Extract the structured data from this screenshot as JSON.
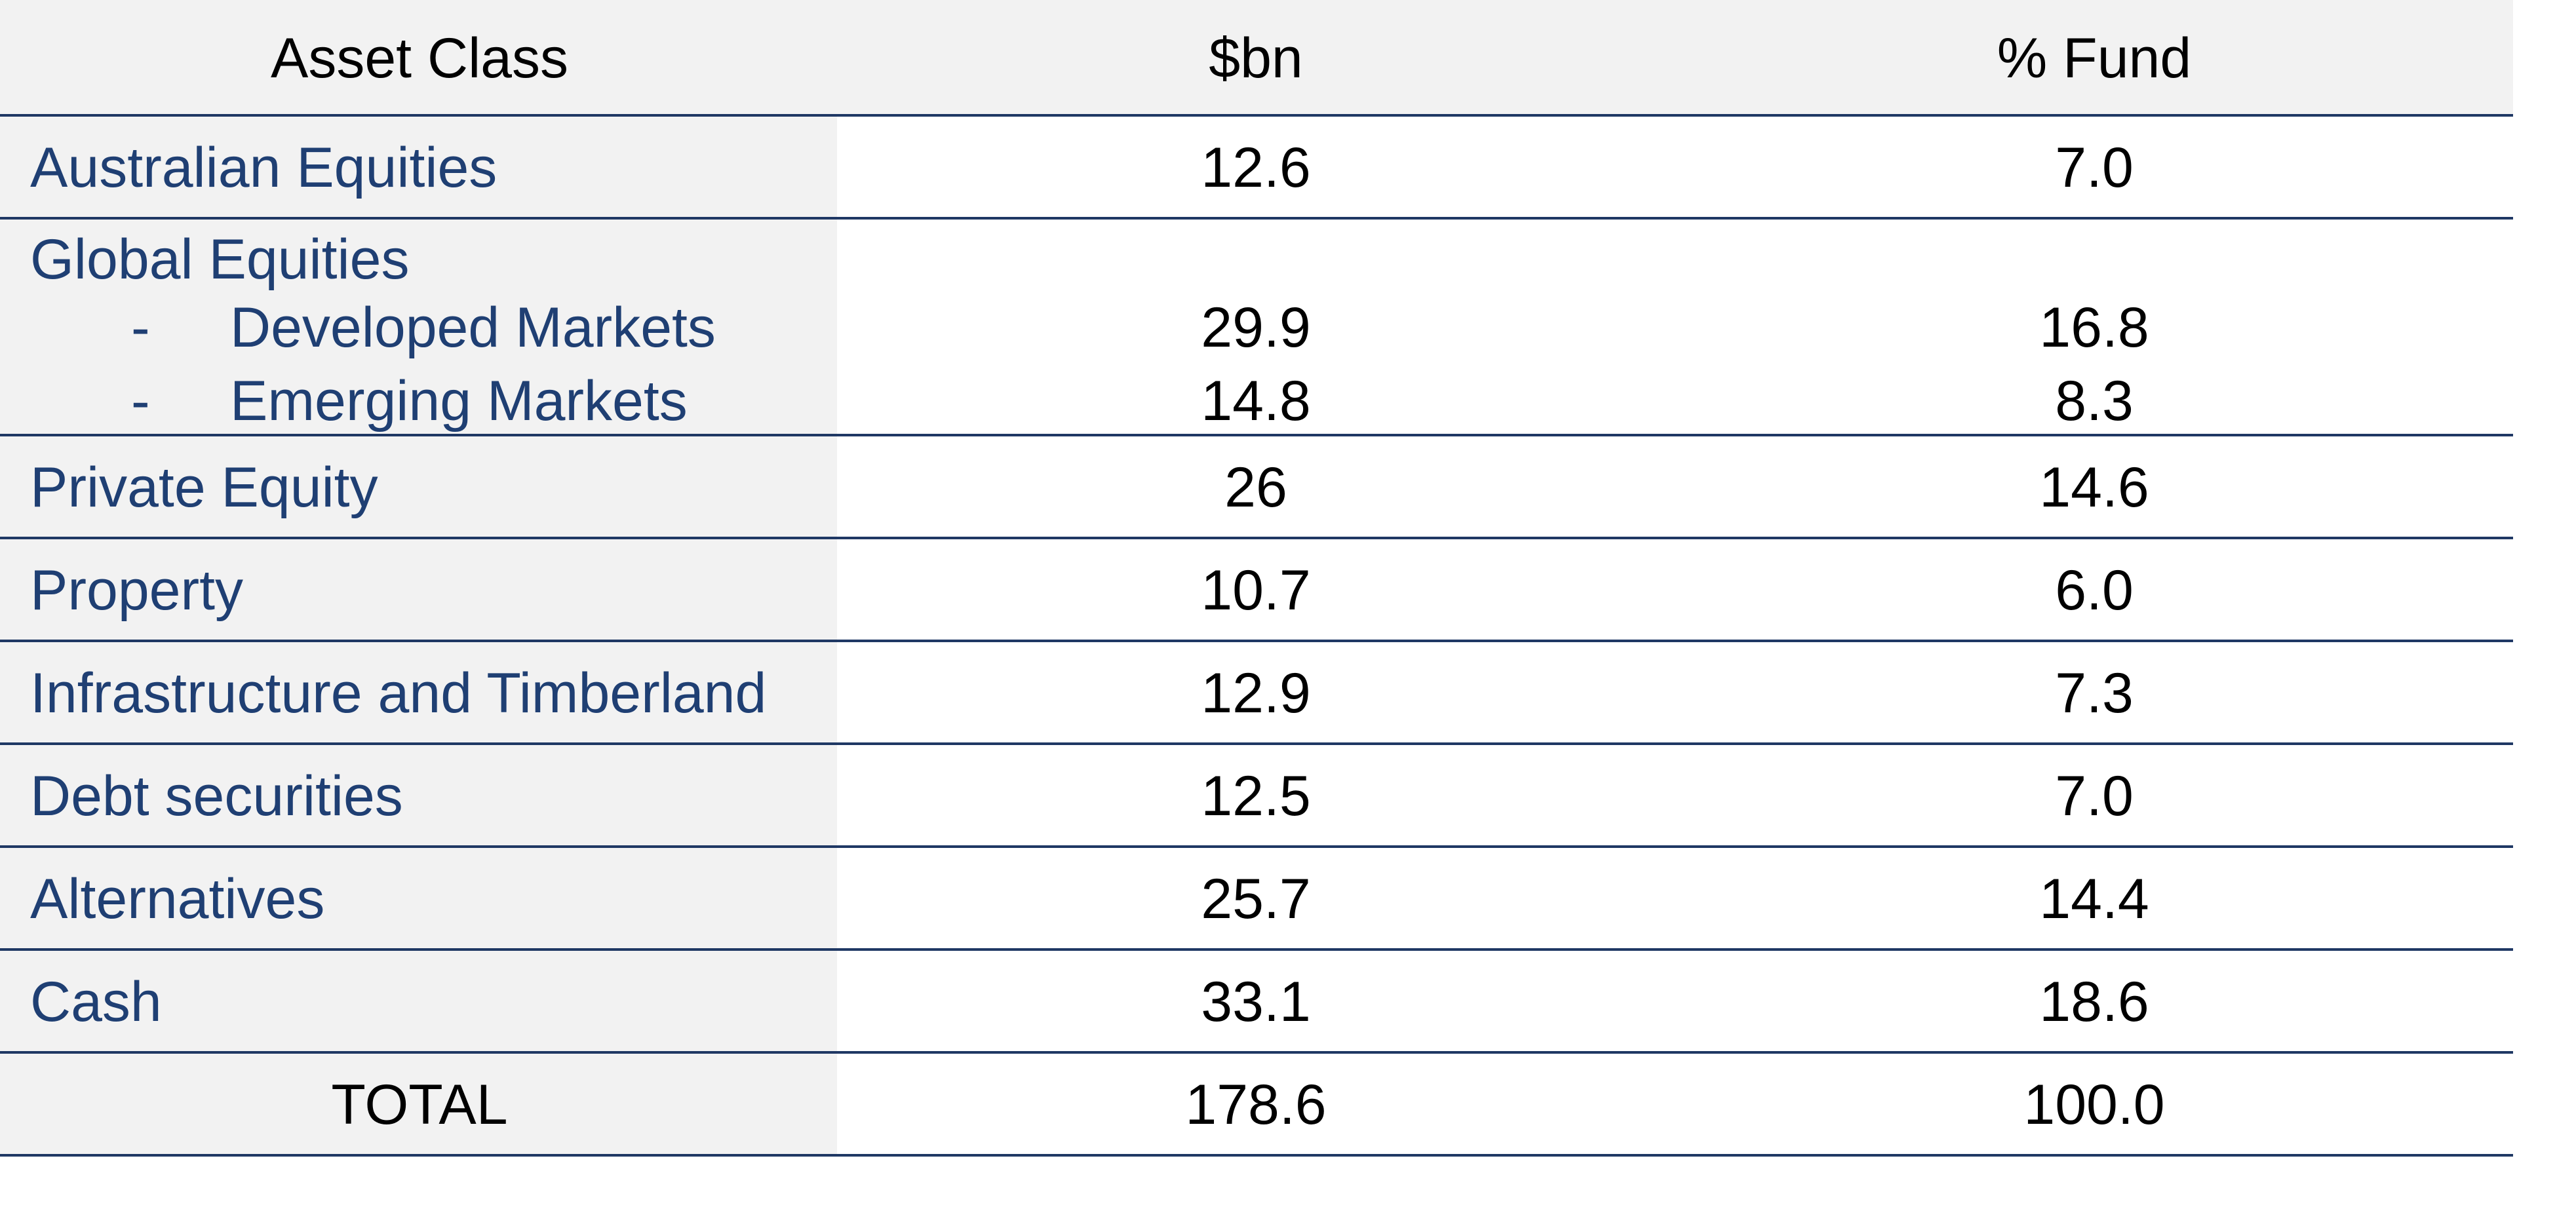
{
  "table": {
    "headers": [
      "Asset Class",
      "$bn",
      "% Fund"
    ],
    "rows": [
      {
        "label": "Australian Equities",
        "values": [
          "12.6",
          "7.0"
        ]
      },
      {
        "label": "Global Equities",
        "sub": [
          {
            "marker": "-",
            "label": "Developed Markets",
            "values": [
              "29.9",
              "16.8"
            ]
          },
          {
            "marker": "-",
            "label": "Emerging Markets",
            "values": [
              "14.8",
              "8.3"
            ]
          }
        ]
      },
      {
        "label": "Private Equity",
        "values": [
          "26",
          "14.6"
        ]
      },
      {
        "label": "Property",
        "values": [
          "10.7",
          "6.0"
        ]
      },
      {
        "label": "Infrastructure and Timberland",
        "values": [
          "12.9",
          "7.3"
        ]
      },
      {
        "label": "Debt securities",
        "values": [
          "12.5",
          "7.0"
        ]
      },
      {
        "label": "Alternatives",
        "values": [
          "25.7",
          "14.4"
        ]
      },
      {
        "label": "Cash",
        "values": [
          "33.1",
          "18.6"
        ]
      }
    ],
    "total": {
      "label": "TOTAL",
      "values": [
        "178.6",
        "100.0"
      ]
    }
  }
}
